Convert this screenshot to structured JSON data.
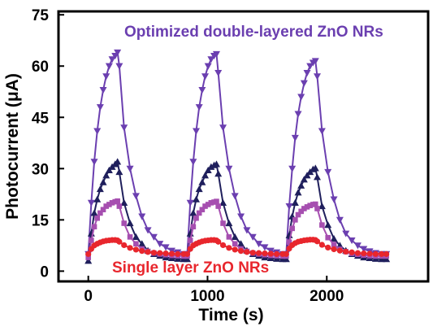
{
  "chart_data": {
    "type": "line",
    "title": "",
    "xlabel": "Time (s)",
    "ylabel": "Photocurrent (μA)",
    "xlim": [
      -250,
      2850
    ],
    "ylim": [
      -3,
      76
    ],
    "xticks": [
      0,
      1000,
      2000
    ],
    "xtick_labels": [
      "0",
      "1000",
      "2000"
    ],
    "yticks": [
      0,
      15,
      30,
      45,
      60,
      75
    ],
    "ytick_labels": [
      "0",
      "15",
      "30",
      "45",
      "60",
      "75"
    ],
    "grid": false,
    "legend": "none",
    "annotations": [
      {
        "text": "Optimized double-layered ZnO NRs",
        "color": "#6b3fb0",
        "position": "top"
      },
      {
        "text": "Single layer ZnO NRs",
        "color": "#e8262d",
        "position": "bottom"
      }
    ],
    "series": [
      {
        "color": "#6b3fb0",
        "marker": "triangle-down",
        "x": [
          0,
          25,
          50,
          75,
          100,
          125,
          150,
          175,
          200,
          225,
          245,
          260,
          300,
          350,
          400,
          450,
          500,
          550,
          600,
          650,
          700,
          750,
          800,
          830,
          855,
          880,
          905,
          930,
          955,
          980,
          1005,
          1030,
          1055,
          1075,
          1090,
          1130,
          1180,
          1230,
          1280,
          1330,
          1380,
          1430,
          1480,
          1530,
          1580,
          1630,
          1660,
          1685,
          1710,
          1735,
          1760,
          1785,
          1810,
          1835,
          1860,
          1885,
          1905,
          1920,
          1960,
          2010,
          2060,
          2110,
          2160,
          2210,
          2260,
          2310,
          2360,
          2410,
          2460,
          2500
        ],
        "y": [
          5,
          20,
          32,
          41,
          48,
          53,
          57,
          60,
          62,
          63,
          64,
          60,
          42,
          30,
          22,
          16,
          12,
          10,
          8,
          7,
          6,
          5.5,
          5,
          5,
          20,
          32,
          41,
          48,
          53,
          57,
          60,
          62,
          63,
          63.5,
          58,
          42,
          30,
          22,
          16,
          12,
          10,
          8,
          7,
          6,
          5.5,
          5,
          5,
          19,
          30,
          39,
          46,
          51,
          55,
          58,
          60,
          61,
          61.5,
          57,
          41,
          29,
          21,
          15,
          11,
          9,
          7.5,
          6.5,
          5.8,
          5.3,
          5,
          5
        ]
      },
      {
        "color": "#1f1f5c",
        "marker": "triangle-up",
        "x": [
          0,
          25,
          50,
          75,
          100,
          125,
          150,
          175,
          200,
          225,
          245,
          260,
          300,
          350,
          400,
          450,
          500,
          550,
          600,
          650,
          700,
          750,
          800,
          830,
          855,
          880,
          905,
          930,
          955,
          980,
          1005,
          1030,
          1055,
          1075,
          1090,
          1130,
          1180,
          1230,
          1280,
          1330,
          1380,
          1430,
          1480,
          1530,
          1580,
          1630,
          1660,
          1685,
          1710,
          1735,
          1760,
          1785,
          1810,
          1835,
          1860,
          1885,
          1905,
          1920,
          1960,
          2010,
          2060,
          2110,
          2160,
          2210,
          2260,
          2310,
          2360,
          2410,
          2460,
          2500
        ],
        "y": [
          3,
          11,
          17,
          21,
          24,
          26,
          28,
          29.5,
          30.5,
          31.3,
          32,
          29,
          20,
          14,
          10,
          8,
          6,
          5,
          4.5,
          4,
          3.8,
          3.6,
          3.5,
          3.5,
          11,
          17,
          21,
          24,
          26,
          28,
          29.5,
          30.5,
          31,
          31.3,
          28.5,
          20,
          14,
          10,
          8,
          6,
          5,
          4.5,
          4,
          3.8,
          3.6,
          3.5,
          3.5,
          10.5,
          16,
          20,
          23,
          25,
          26.8,
          28,
          29,
          29.8,
          30.1,
          27.5,
          19,
          13.5,
          9.5,
          7.5,
          6,
          5,
          4.5,
          4,
          3.8,
          3.6,
          3.5,
          3.5
        ]
      },
      {
        "color": "#a64fb0",
        "marker": "square",
        "x": [
          0,
          25,
          50,
          75,
          100,
          125,
          150,
          175,
          200,
          225,
          245,
          260,
          300,
          350,
          400,
          450,
          500,
          550,
          600,
          650,
          700,
          750,
          800,
          830,
          855,
          880,
          905,
          930,
          955,
          980,
          1005,
          1030,
          1055,
          1075,
          1090,
          1130,
          1180,
          1230,
          1280,
          1330,
          1380,
          1430,
          1480,
          1530,
          1580,
          1630,
          1660,
          1685,
          1710,
          1735,
          1760,
          1785,
          1810,
          1835,
          1860,
          1885,
          1905,
          1920,
          1960,
          2010,
          2060,
          2110,
          2160,
          2210,
          2260,
          2310,
          2360,
          2410,
          2460,
          2500
        ],
        "y": [
          4,
          9,
          13,
          15.5,
          17,
          18,
          19,
          19.5,
          20,
          20.3,
          20.5,
          19,
          14,
          10,
          8,
          6.5,
          5.8,
          5.3,
          5,
          4.8,
          4.6,
          4.5,
          4.4,
          4.4,
          9,
          13,
          15.5,
          17,
          18,
          19,
          19.5,
          20,
          20.2,
          20.4,
          19,
          14,
          10,
          8,
          6.5,
          5.8,
          5.3,
          5,
          4.8,
          4.6,
          4.5,
          4.4,
          4.4,
          8.5,
          12.5,
          15,
          16.5,
          17.5,
          18.3,
          18.8,
          19.2,
          19.5,
          19.6,
          18.3,
          13.5,
          9.8,
          7.8,
          6.4,
          5.7,
          5.2,
          4.9,
          4.7,
          4.5,
          4.4,
          4.4,
          4.4
        ]
      },
      {
        "color": "#e8262d",
        "marker": "circle",
        "x": [
          0,
          25,
          50,
          75,
          100,
          125,
          150,
          175,
          200,
          225,
          245,
          260,
          300,
          350,
          400,
          450,
          500,
          550,
          600,
          650,
          700,
          750,
          800,
          830,
          855,
          880,
          905,
          930,
          955,
          980,
          1005,
          1030,
          1055,
          1075,
          1090,
          1130,
          1180,
          1230,
          1280,
          1330,
          1380,
          1430,
          1480,
          1530,
          1580,
          1630,
          1660,
          1685,
          1710,
          1735,
          1760,
          1785,
          1810,
          1835,
          1860,
          1885,
          1905,
          1920,
          1960,
          2010,
          2060,
          2110,
          2160,
          2210,
          2260,
          2310,
          2360,
          2410,
          2460,
          2500
        ],
        "y": [
          5,
          6.5,
          7.5,
          8,
          8.4,
          8.7,
          8.9,
          9,
          9.1,
          9.1,
          9,
          8.6,
          7.6,
          6.8,
          6.3,
          5.9,
          5.6,
          5.4,
          5.3,
          5.2,
          5.1,
          5,
          5,
          5,
          6.5,
          7.5,
          8,
          8.4,
          8.7,
          8.9,
          9,
          9.1,
          9.1,
          9,
          8.6,
          7.6,
          6.8,
          6.3,
          5.9,
          5.6,
          5.4,
          5.3,
          5.2,
          5.1,
          5,
          5,
          5,
          6.6,
          7.6,
          8.2,
          8.6,
          8.8,
          9,
          9.1,
          9.2,
          9.2,
          9.1,
          8.7,
          7.7,
          6.9,
          6.4,
          6,
          5.7,
          5.5,
          5.3,
          5.2,
          5.1,
          5,
          5,
          5
        ]
      }
    ]
  }
}
